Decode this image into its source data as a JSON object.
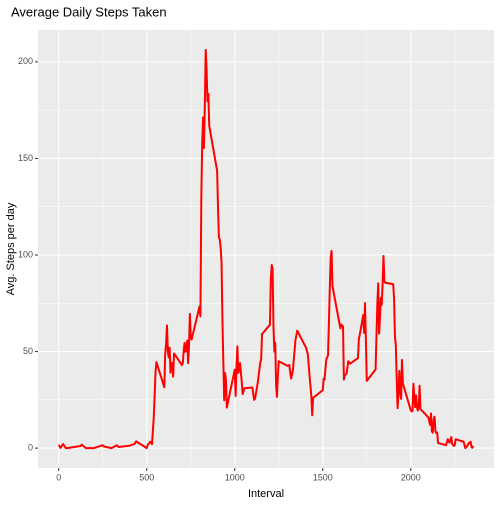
{
  "chart_data": {
    "type": "line",
    "title": "Average Daily Steps Taken",
    "x_label": "Interval",
    "y_label": "Avg. Steps per day",
    "x": [
      0,
      10,
      25,
      40,
      55,
      125,
      130,
      155,
      200,
      250,
      255,
      300,
      330,
      340,
      400,
      430,
      440,
      500,
      505,
      520,
      530,
      540,
      550,
      555,
      600,
      605,
      610,
      615,
      620,
      625,
      630,
      635,
      640,
      645,
      650,
      655,
      700,
      705,
      710,
      715,
      720,
      725,
      730,
      735,
      740,
      745,
      750,
      755,
      800,
      805,
      810,
      815,
      820,
      825,
      830,
      835,
      840,
      845,
      850,
      855,
      900,
      905,
      910,
      915,
      920,
      925,
      930,
      935,
      940,
      945,
      950,
      955,
      1000,
      1005,
      1010,
      1015,
      1020,
      1030,
      1040,
      1045,
      1055,
      1100,
      1110,
      1115,
      1130,
      1145,
      1150,
      1155,
      1200,
      1205,
      1210,
      1215,
      1220,
      1225,
      1230,
      1235,
      1240,
      1245,
      1250,
      1300,
      1310,
      1320,
      1330,
      1345,
      1355,
      1405,
      1415,
      1425,
      1435,
      1440,
      1445,
      1500,
      1505,
      1510,
      1520,
      1530,
      1535,
      1540,
      1545,
      1550,
      1555,
      1600,
      1605,
      1615,
      1620,
      1625,
      1635,
      1645,
      1655,
      1700,
      1705,
      1715,
      1730,
      1735,
      1740,
      1745,
      1750,
      1800,
      1810,
      1815,
      1820,
      1825,
      1830,
      1835,
      1840,
      1845,
      1850,
      1855,
      1900,
      1905,
      1910,
      1915,
      1920,
      1925,
      1930,
      1935,
      1940,
      1945,
      1950,
      1955,
      2000,
      2005,
      2010,
      2015,
      2020,
      2025,
      2030,
      2035,
      2040,
      2045,
      2050,
      2055,
      2100,
      2110,
      2115,
      2120,
      2125,
      2130,
      2135,
      2140,
      2145,
      2150,
      2155,
      2200,
      2210,
      2220,
      2230,
      2235,
      2245,
      2250,
      2255,
      2300,
      2310,
      2320,
      2330,
      2340,
      2345,
      2350,
      2355
    ],
    "series": [
      {
        "name": "steps",
        "color": "#ff0000",
        "values": [
          1.7,
          0.1,
          2.1,
          0,
          0.1,
          1.1,
          1.8,
          0,
          0,
          1.5,
          0.9,
          0,
          1.5,
          0.6,
          1.2,
          2.1,
          3.5,
          0,
          1.6,
          3.3,
          2.1,
          16,
          39.5,
          44.5,
          31.5,
          49.3,
          53.8,
          63.5,
          50,
          47,
          52,
          39,
          44,
          44,
          37,
          49,
          43,
          44,
          50.5,
          54.5,
          49.9,
          51,
          55.7,
          44,
          52,
          69.5,
          57.8,
          56.2,
          73.4,
          68.2,
          129.4,
          157.5,
          171.2,
          155.4,
          177.3,
          206.2,
          195.9,
          179.6,
          183.4,
          167,
          143.5,
          124,
          109,
          108,
          103.7,
          95.9,
          66.2,
          45.2,
          24.8,
          38.8,
          35,
          21,
          40.6,
          27,
          42.4,
          52.7,
          38.9,
          44,
          34,
          28,
          31,
          31.4,
          25,
          25.5,
          33.4,
          44.2,
          46,
          59,
          63.9,
          87.6,
          94.8,
          92.8,
          63,
          50,
          54.5,
          32.4,
          26.5,
          37.7,
          45,
          42.6,
          43,
          36,
          40,
          56,
          60.8,
          52,
          48.7,
          37.5,
          27,
          17,
          26,
          30,
          36,
          35.5,
          45.9,
          48.1,
          65.3,
          82.9,
          98.7,
          102.1,
          84,
          62,
          64,
          63,
          35.5,
          37.7,
          38.6,
          45,
          43.7,
          46.6,
          56.3,
          61.2,
          68.9,
          59.7,
          75.1,
          56.5,
          34.8,
          40.7,
          74.7,
          85.3,
          59.3,
          67.8,
          77.7,
          74.2,
          85.3,
          99.5,
          86.6,
          85.6,
          84.9,
          77.8,
          58,
          53.4,
          36.3,
          20.7,
          27.4,
          40,
          30.2,
          25.5,
          45.7,
          33.5,
          19.6,
          19,
          19.3,
          33.3,
          26.8,
          21.2,
          27.3,
          21.3,
          19.5,
          21.3,
          32.3,
          20.2,
          15.9,
          12,
          18,
          8.7,
          8,
          14.7,
          16.3,
          8.7,
          7.8,
          8.1,
          2.6,
          1.5,
          4.6,
          2.8,
          5.7,
          2.2,
          1.1,
          1.6,
          4.6,
          3.3,
          0,
          1,
          2.6,
          3.3,
          0.6,
          0.2,
          1.1
        ]
      }
    ],
    "xlim": [
      -117.75,
      2472.75
    ],
    "xticks": [
      0,
      500,
      1000,
      1500,
      2000
    ],
    "ylim": [
      -10.3,
      216.5
    ],
    "yticks": [
      0,
      50,
      100,
      150,
      200
    ],
    "grid": true
  }
}
